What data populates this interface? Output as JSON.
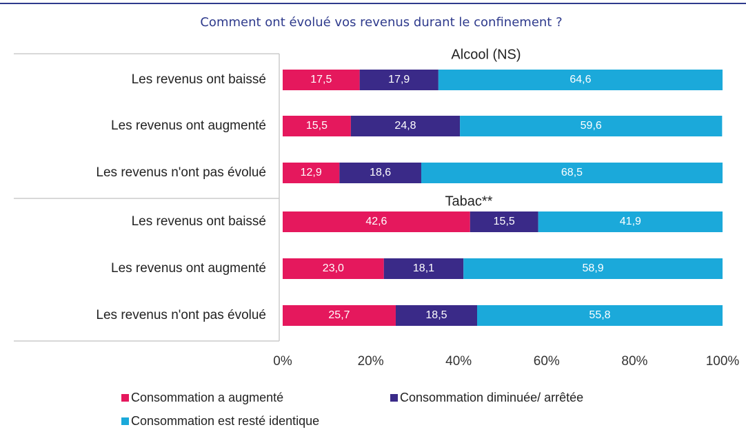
{
  "chart_data": {
    "type": "stacked-bar",
    "title": "Comment ont évolué vos revenus durant le confinement ?",
    "groups": [
      {
        "name": "Alcool (NS)",
        "categories": [
          "Les revenus ont baissé",
          "Les revenus ont augmenté",
          "Les revenus n'ont pas évolué"
        ]
      },
      {
        "name": "Tabac**",
        "categories": [
          "Les revenus ont baissé",
          "Les revenus ont augmenté",
          "Les revenus n'ont pas évolué"
        ]
      }
    ],
    "series": [
      {
        "name": "Consommation a augmenté",
        "color": "#e5185d",
        "values": [
          17.5,
          15.5,
          12.9,
          42.6,
          23.0,
          25.7
        ],
        "value_labels": [
          "17,5",
          "15,5",
          "12,9",
          "42,6",
          "23,0",
          "25,7"
        ]
      },
      {
        "name": "Consommation diminuée/ arrêtée",
        "color": "#3a2a88",
        "values": [
          17.9,
          24.8,
          18.6,
          15.5,
          18.1,
          18.5
        ],
        "value_labels": [
          "17,9",
          "24,8",
          "18,6",
          "15,5",
          "18,1",
          "18,5"
        ]
      },
      {
        "name": "Consommation est resté identique",
        "color": "#1ba9da",
        "values": [
          64.6,
          59.6,
          68.5,
          41.9,
          58.9,
          55.8
        ],
        "value_labels": [
          "64,6",
          "59,6",
          "68,5",
          "41,9",
          "58,9",
          "55,8"
        ]
      }
    ],
    "xlim": [
      0,
      100
    ],
    "xticks": [
      {
        "value": 0,
        "label": "0%"
      },
      {
        "value": 20,
        "label": "20%"
      },
      {
        "value": 40,
        "label": "40%"
      },
      {
        "value": 60,
        "label": "60%"
      },
      {
        "value": 80,
        "label": "80%"
      },
      {
        "value": 100,
        "label": "100%"
      }
    ]
  }
}
